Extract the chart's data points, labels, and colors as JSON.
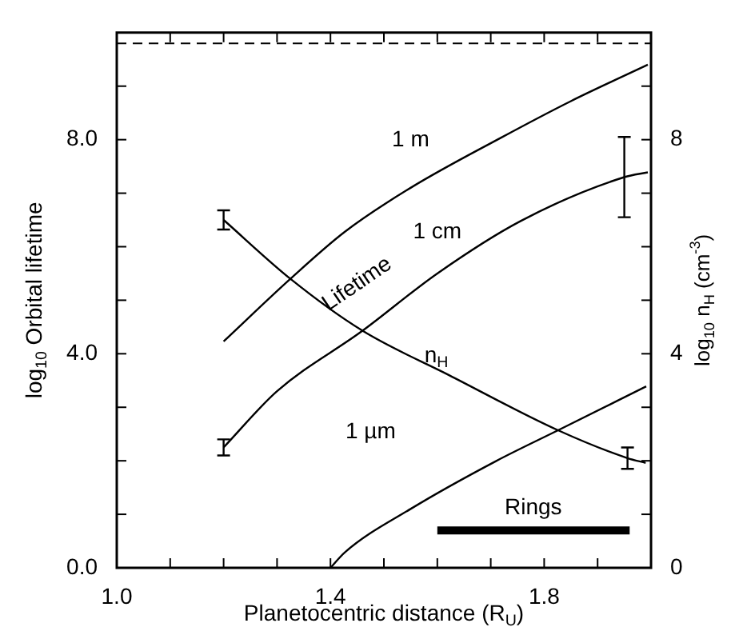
{
  "chart_data": {
    "type": "line",
    "xlabel": "Planetocentric distance (R$_{U}$)",
    "ylabel": "log$_{10}$ Orbital lifetime",
    "y2label": "log$_{10}$ n$_{H}$ (cm$^{-3}$)",
    "xlim": [
      1.0,
      2.0
    ],
    "ylim": [
      0,
      10
    ],
    "y2lim": [
      0,
      10
    ],
    "xticks": [
      {
        "value": 1.0,
        "label": "1.0"
      },
      {
        "value": 1.1,
        "label": null
      },
      {
        "value": 1.2,
        "label": null
      },
      {
        "value": 1.3,
        "label": null
      },
      {
        "value": 1.4,
        "label": "1.4"
      },
      {
        "value": 1.5,
        "label": null
      },
      {
        "value": 1.6,
        "label": null
      },
      {
        "value": 1.7,
        "label": null
      },
      {
        "value": 1.8,
        "label": "1.8"
      },
      {
        "value": 1.9,
        "label": null
      },
      {
        "value": 2.0,
        "label": null
      }
    ],
    "yticks": [
      {
        "value": 0,
        "label": "0.0"
      },
      {
        "value": 1,
        "label": null
      },
      {
        "value": 2,
        "label": null
      },
      {
        "value": 3,
        "label": null
      },
      {
        "value": 4,
        "label": "4.0"
      },
      {
        "value": 5,
        "label": null
      },
      {
        "value": 6,
        "label": null
      },
      {
        "value": 7,
        "label": null
      },
      {
        "value": 8,
        "label": "8.0"
      },
      {
        "value": 9,
        "label": null
      }
    ],
    "y2ticks": [
      0,
      {
        "value": 1,
        "label": null
      },
      {
        "value": 2,
        "label": null
      },
      {
        "value": 3,
        "label": null
      },
      4,
      {
        "value": 5,
        "label": null
      },
      {
        "value": 6,
        "label": null
      },
      {
        "value": 7,
        "label": null
      },
      8,
      {
        "value": 9,
        "label": null
      }
    ],
    "grid": false,
    "legend": false,
    "marker": "none",
    "line_style": "solid",
    "annotations": [
      "Lifetime"
    ],
    "ref_lines": [
      {
        "axis": "y",
        "value": 9.8,
        "line_style": "dashed",
        "color": "#000000"
      }
    ],
    "series": [
      {
        "name": "1 m",
        "color": "#000000",
        "x": [
          1.2,
          1.325,
          1.427,
          1.55,
          1.718,
          1.85,
          1.994
        ],
        "values": [
          4.23,
          5.4,
          6.28,
          7.1,
          8.03,
          8.72,
          9.4
        ]
      },
      {
        "name": "1 cm",
        "color": "#000000",
        "x": [
          1.2,
          1.3,
          1.46,
          1.6,
          1.756,
          1.95,
          1.994
        ],
        "values": [
          2.25,
          3.3,
          4.43,
          5.5,
          6.48,
          7.3,
          7.39
        ],
        "errors": [
          0.15,
          null,
          null,
          null,
          null,
          [
            6.55,
            8.05
          ],
          null
        ]
      },
      {
        "name": "1 µm",
        "color": "#000000",
        "x": [
          1.4,
          1.427,
          1.55,
          1.709,
          1.826,
          1.991
        ],
        "values": [
          0,
          0.29,
          1.1,
          1.99,
          2.57,
          3.39
        ]
      },
      {
        "name": "n$_{H}$",
        "color": "#000000",
        "axis": "y2",
        "x": [
          1.2,
          1.325,
          1.46,
          1.622,
          1.826,
          1.956,
          1.99
        ],
        "values": [
          6.5,
          5.4,
          4.43,
          3.6,
          2.57,
          2.05,
          1.96
        ],
        "errors": [
          0.18,
          null,
          null,
          null,
          null,
          [
            1.85,
            2.25
          ],
          null
        ]
      },
      {
        "name": "Rings",
        "color": "#000000",
        "x": [
          1.6,
          1.96
        ],
        "values": [
          0.7,
          0.7
        ]
      }
    ]
  }
}
